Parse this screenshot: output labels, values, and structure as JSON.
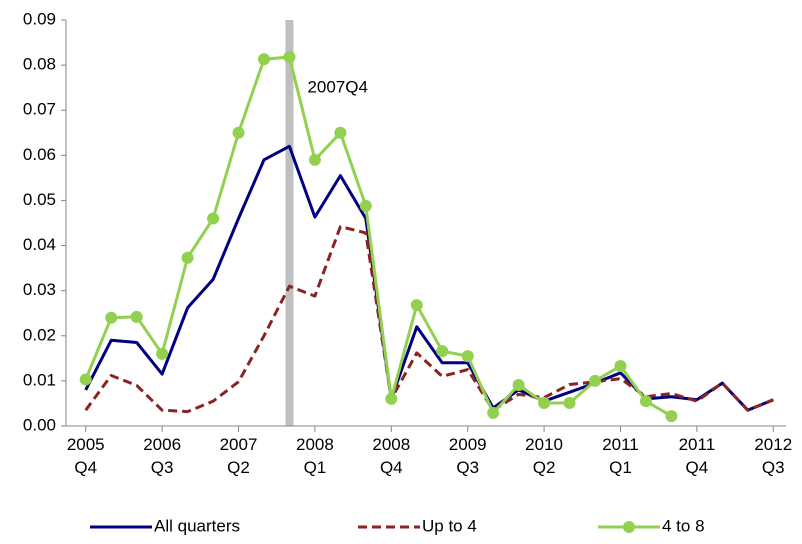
{
  "chart_data": {
    "type": "line",
    "annotation": "2007Q4",
    "categories": [
      "2005 Q4",
      null,
      null,
      "2006 Q3",
      null,
      null,
      "2007 Q2",
      null,
      null,
      "2008 Q1",
      null,
      null,
      "2008 Q4",
      null,
      null,
      "2009 Q3",
      null,
      null,
      "2010 Q2",
      null,
      null,
      "2011 Q1",
      null,
      null,
      "2011 Q4",
      null,
      null,
      "2012 Q3"
    ],
    "ylim": [
      0,
      0.09
    ],
    "yticks": [
      {
        "value": 0,
        "label": "0.00"
      },
      0.01,
      0.02,
      0.03,
      0.04,
      0.05,
      0.06,
      0.07,
      0.08,
      0.09
    ],
    "series": [
      {
        "name": "All quarters",
        "color": "#000080",
        "dash": false,
        "markers": false,
        "values": [
          0.008,
          0.019,
          0.0185,
          0.0115,
          0.0262,
          0.0325,
          0.046,
          0.059,
          0.062,
          0.0463,
          0.0555,
          0.046,
          0.006,
          0.022,
          0.014,
          0.014,
          0.004,
          0.008,
          0.0055,
          0.0075,
          0.0095,
          0.0118,
          0.006,
          0.0065,
          0.0058,
          0.0095,
          0.0035,
          0.0058
        ]
      },
      {
        "name": "Up to 4",
        "color": "#8b2323",
        "dash": true,
        "markers": false,
        "values": [
          0.0035,
          0.0112,
          0.009,
          0.0035,
          0.0032,
          0.0055,
          0.0098,
          0.02,
          0.031,
          0.0288,
          0.0442,
          0.0428,
          0.006,
          0.0162,
          0.011,
          0.0125,
          0.0035,
          0.007,
          0.0063,
          0.0092,
          0.0098,
          0.0105,
          0.0065,
          0.0072,
          0.0055,
          0.0095,
          0.0035,
          0.0058
        ]
      },
      {
        "name": "4 to 8",
        "color": "#92d050",
        "dash": false,
        "markers": true,
        "values": [
          0.0103,
          0.024,
          0.0242,
          0.016,
          0.0373,
          0.046,
          0.065,
          0.0813,
          0.0818,
          0.059,
          0.065,
          0.0488,
          0.006,
          0.0268,
          0.0166,
          0.0155,
          0.0029,
          0.0091,
          0.0051,
          0.0051,
          0.01,
          0.0133,
          0.0055,
          0.0022,
          null,
          null,
          null,
          null
        ]
      }
    ]
  }
}
